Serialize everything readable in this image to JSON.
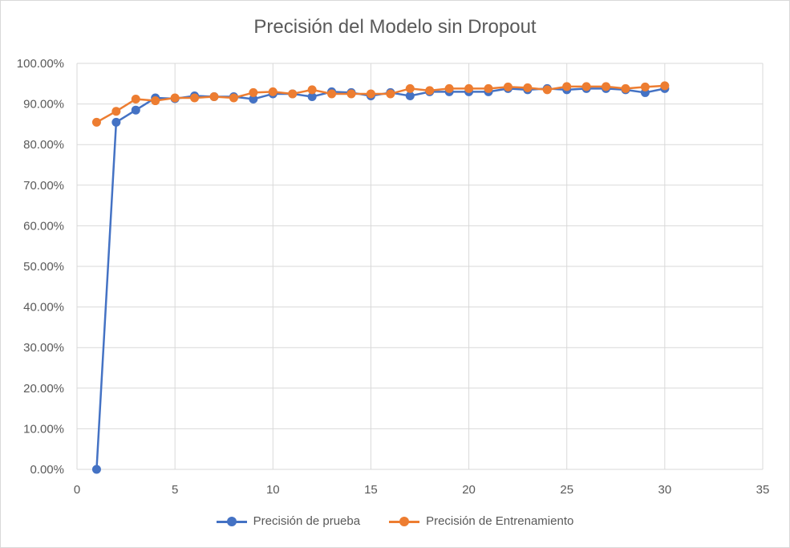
{
  "chart_data": {
    "type": "line",
    "title": "Precisión del Modelo sin Dropout",
    "xlabel": "",
    "ylabel": "",
    "xlim": [
      0,
      35
    ],
    "ylim": [
      0,
      1
    ],
    "x_ticks": [
      "0",
      "5",
      "10",
      "15",
      "20",
      "25",
      "30",
      "35"
    ],
    "y_ticks": [
      "0.00%",
      "10.00%",
      "20.00%",
      "30.00%",
      "40.00%",
      "50.00%",
      "60.00%",
      "70.00%",
      "80.00%",
      "90.00%",
      "100.00%"
    ],
    "grid": true,
    "legend": "bottom",
    "x": [
      1,
      2,
      3,
      4,
      5,
      6,
      7,
      8,
      9,
      10,
      11,
      12,
      13,
      14,
      15,
      16,
      17,
      18,
      19,
      20,
      21,
      22,
      23,
      24,
      25,
      26,
      27,
      28,
      29,
      30
    ],
    "series": [
      {
        "name": "Precisión de prueba",
        "color": "#4472C4",
        "values": [
          0.0,
          0.855,
          0.885,
          0.915,
          0.913,
          0.92,
          0.918,
          0.918,
          0.912,
          0.925,
          0.925,
          0.918,
          0.93,
          0.928,
          0.92,
          0.928,
          0.92,
          0.93,
          0.93,
          0.93,
          0.93,
          0.938,
          0.935,
          0.938,
          0.935,
          0.938,
          0.938,
          0.935,
          0.928,
          0.938
        ]
      },
      {
        "name": "Precisión de Entrenamiento",
        "color": "#ED7D31",
        "values": [
          0.855,
          0.882,
          0.912,
          0.908,
          0.915,
          0.915,
          0.918,
          0.915,
          0.928,
          0.93,
          0.925,
          0.935,
          0.925,
          0.925,
          0.925,
          0.925,
          0.938,
          0.933,
          0.938,
          0.938,
          0.938,
          0.942,
          0.94,
          0.935,
          0.943,
          0.943,
          0.943,
          0.938,
          0.942,
          0.945
        ]
      }
    ]
  }
}
